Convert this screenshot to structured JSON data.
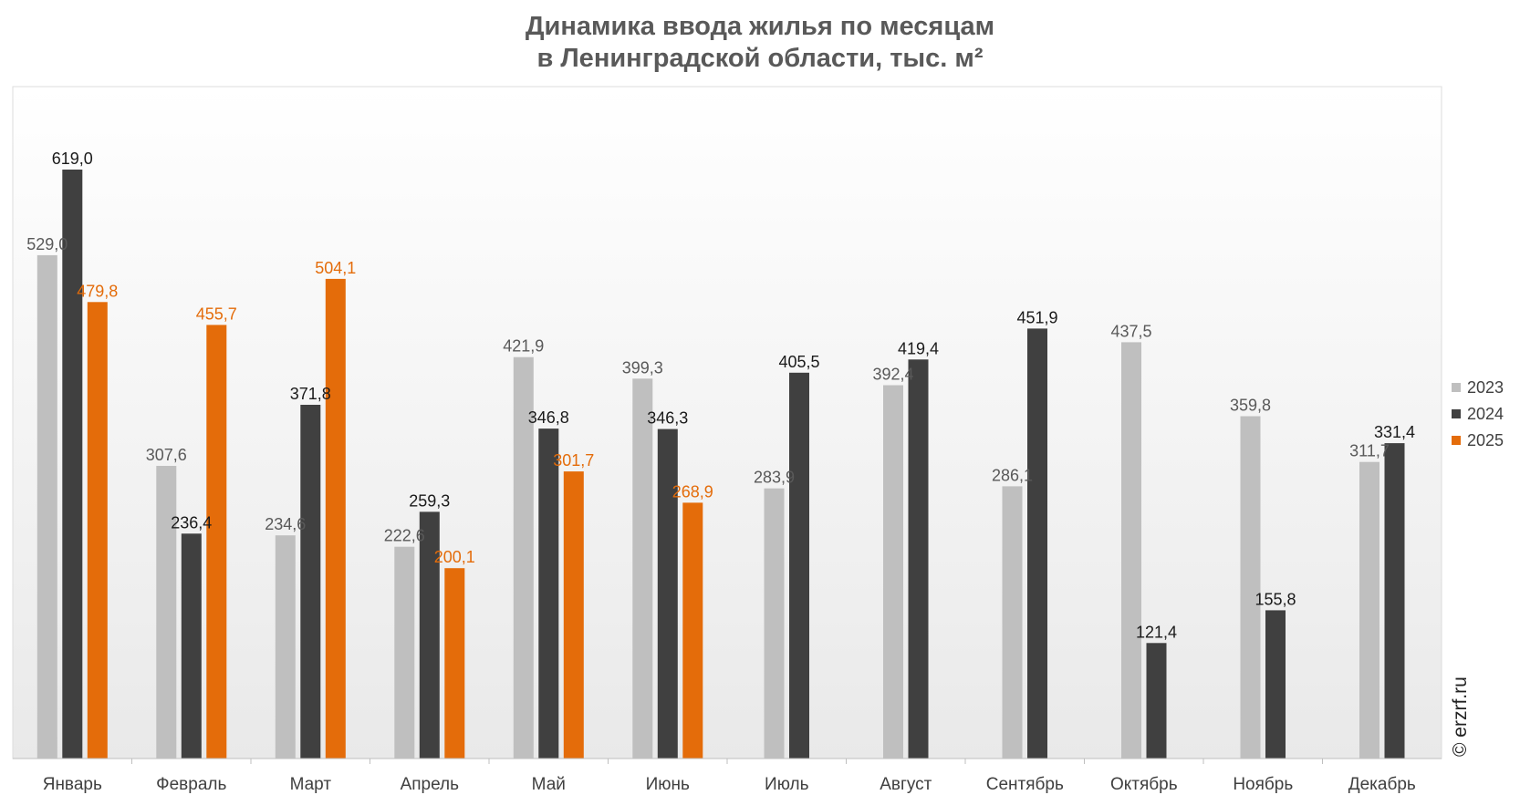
{
  "chart_data": {
    "type": "bar",
    "title": "Динамика ввода жилья по месяцам",
    "subtitle": "в Ленинградской области, тыс. м²",
    "categories": [
      "Январь",
      "Февраль",
      "Март",
      "Апрель",
      "Май",
      "Июнь",
      "Июль",
      "Август",
      "Сентябрь",
      "Октябрь",
      "Ноябрь",
      "Декабрь"
    ],
    "series": [
      {
        "name": "2023",
        "color": "#bfbfbf",
        "label_color": "#595959",
        "values": [
          529.0,
          307.6,
          234.6,
          222.6,
          421.9,
          399.3,
          283.9,
          392.4,
          286.1,
          437.5,
          359.8,
          311.7
        ],
        "labels": [
          "529,0",
          "307,6",
          "234,6",
          "222,6",
          "421,9",
          "399,3",
          "283,9",
          "392,4",
          "286,1",
          "437,5",
          "359,8",
          "311,7"
        ]
      },
      {
        "name": "2024",
        "color": "#404040",
        "label_color": "#1a1a1a",
        "values": [
          619.0,
          236.4,
          371.8,
          259.3,
          346.8,
          346.3,
          405.5,
          419.4,
          451.9,
          121.4,
          155.8,
          331.4
        ],
        "labels": [
          "619,0",
          "236,4",
          "371,8",
          "259,3",
          "346,8",
          "346,3",
          "405,5",
          "419,4",
          "451,9",
          "121,4",
          "155,8",
          "331,4"
        ]
      },
      {
        "name": "2025",
        "color": "#e46c0a",
        "label_color": "#e46c0a",
        "values": [
          479.8,
          455.7,
          504.1,
          200.1,
          301.7,
          268.9,
          null,
          null,
          null,
          null,
          null,
          null
        ],
        "labels": [
          "479,8",
          "455,7",
          "504,1",
          "200,1",
          "301,7",
          "268,9",
          null,
          null,
          null,
          null,
          null,
          null
        ]
      }
    ],
    "ylim": [
      0,
      680
    ],
    "grid": false,
    "legend_position": "right",
    "credit": "© erzrf.ru"
  }
}
